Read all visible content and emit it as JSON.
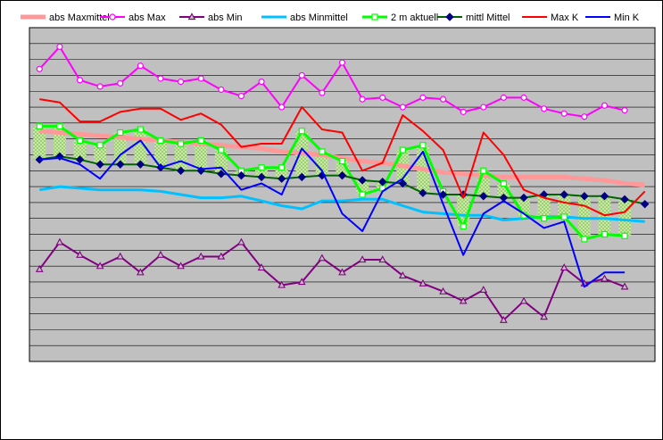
{
  "chart_data": {
    "type": "line",
    "title": "",
    "xlabel": "",
    "ylabel": "",
    "ylim": [
      0,
      21
    ],
    "grid": true,
    "legend_position": "top",
    "background_color": "#c0c0c0",
    "x": [
      1,
      2,
      3,
      4,
      5,
      6,
      7,
      8,
      9,
      10,
      11,
      12,
      13,
      14,
      15,
      16,
      17,
      18,
      19,
      20,
      21,
      22,
      23,
      24,
      25,
      26,
      27,
      28,
      29,
      30,
      31
    ],
    "series": [
      {
        "name": "abs Maxmittel",
        "color": "#ff9999",
        "width": 5,
        "marker": "none",
        "values": [
          14.5,
          14.4,
          14.3,
          14.2,
          14.1,
          14.0,
          13.9,
          13.8,
          13.7,
          13.6,
          13.5,
          13.4,
          13.2,
          13.1,
          13.0,
          12.8,
          12.6,
          12.5,
          12.3,
          12.1,
          11.9,
          11.8,
          11.7,
          11.6,
          11.6,
          11.6,
          11.6,
          11.5,
          11.4,
          11.2,
          11.1
        ]
      },
      {
        "name": "abs Max",
        "color": "#ff00ff",
        "width": 2,
        "marker": "circle",
        "values": [
          18.4,
          19.8,
          17.7,
          17.3,
          17.5,
          18.6,
          17.8,
          17.6,
          17.8,
          17.1,
          16.7,
          17.6,
          16.0,
          18.0,
          16.9,
          18.8,
          16.5,
          16.6,
          16.0,
          16.6,
          16.5,
          15.7,
          16.0,
          16.6,
          16.6,
          15.9,
          15.6,
          15.4,
          16.1,
          15.8,
          null
        ]
      },
      {
        "name": "abs Min",
        "color": "#800080",
        "width": 2,
        "marker": "triangle",
        "values": [
          5.8,
          7.5,
          6.7,
          6.0,
          6.6,
          5.6,
          6.7,
          6.0,
          6.6,
          6.6,
          7.5,
          5.9,
          4.8,
          5.0,
          6.5,
          5.6,
          6.4,
          6.4,
          5.4,
          4.9,
          4.4,
          3.8,
          4.5,
          2.6,
          3.8,
          2.8,
          5.9,
          4.9,
          5.2,
          4.7,
          null
        ]
      },
      {
        "name": "abs Minmittel",
        "color": "#00c0ff",
        "width": 3,
        "marker": "none",
        "values": [
          10.8,
          11.0,
          10.9,
          10.8,
          10.8,
          10.8,
          10.7,
          10.5,
          10.3,
          10.3,
          10.4,
          10.1,
          9.8,
          9.6,
          10.1,
          10.1,
          10.2,
          10.2,
          9.8,
          9.4,
          9.3,
          9.2,
          9.2,
          8.9,
          9.0,
          9.1,
          9.1,
          9.0,
          9.0,
          8.9,
          8.8
        ]
      },
      {
        "name": "2 m aktuell",
        "color": "#00ff00",
        "width": 3,
        "marker": "square",
        "values": [
          14.8,
          14.8,
          13.9,
          13.6,
          14.4,
          14.6,
          13.9,
          13.7,
          13.9,
          13.3,
          12.0,
          12.2,
          12.2,
          14.5,
          13.2,
          12.6,
          10.5,
          10.9,
          13.3,
          13.6,
          10.7,
          8.5,
          12.0,
          11.2,
          9.2,
          9.0,
          9.1,
          7.7,
          8.0,
          7.9,
          null
        ]
      },
      {
        "name": "mittl Mittel",
        "color": "#006400",
        "width": 2,
        "marker": "diamond",
        "values": [
          12.7,
          12.9,
          12.7,
          12.4,
          12.4,
          12.4,
          12.2,
          12.0,
          12.0,
          11.8,
          11.7,
          11.6,
          11.5,
          11.6,
          11.7,
          11.7,
          11.4,
          11.3,
          11.2,
          10.6,
          10.5,
          10.5,
          10.4,
          10.3,
          10.3,
          10.5,
          10.5,
          10.4,
          10.4,
          10.2,
          9.9
        ]
      },
      {
        "name": "Max K",
        "color": "#ff0000",
        "width": 2,
        "marker": "none",
        "values": [
          16.5,
          16.3,
          15.1,
          15.1,
          15.7,
          15.9,
          15.9,
          15.2,
          15.6,
          14.9,
          13.5,
          13.7,
          13.7,
          16.0,
          14.6,
          14.4,
          12.0,
          12.5,
          15.5,
          14.5,
          13.3,
          10.3,
          14.4,
          13.0,
          10.8,
          10.3,
          10.0,
          9.8,
          9.2,
          9.4,
          10.7
        ]
      },
      {
        "name": "Min K",
        "color": "#0000ff",
        "width": 2,
        "marker": "none",
        "values": [
          12.7,
          12.8,
          12.4,
          11.5,
          13.0,
          13.9,
          12.2,
          12.6,
          12.1,
          12.2,
          10.8,
          11.2,
          10.5,
          13.4,
          12.0,
          9.3,
          8.2,
          10.7,
          11.5,
          13.2,
          9.9,
          6.7,
          9.3,
          10.1,
          9.3,
          8.4,
          8.8,
          4.7,
          5.6,
          5.6,
          null
        ]
      }
    ]
  }
}
